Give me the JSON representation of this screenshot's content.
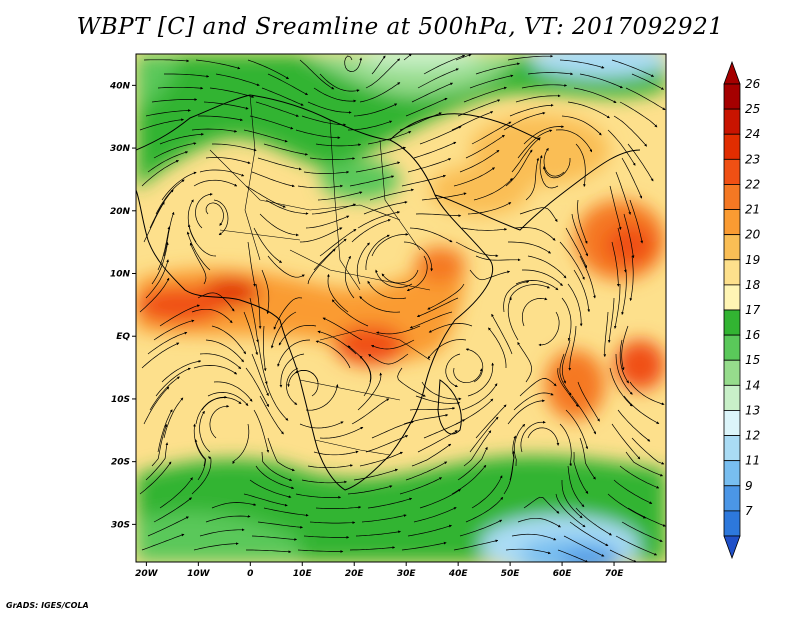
{
  "title": "WBPT [C] and Sreamline at 500hPa, VT: 2017092921",
  "credit": "GrADS: IGES/COLA",
  "map": {
    "lon_range": [
      -22,
      80
    ],
    "lat_range": [
      -36,
      45
    ],
    "lat_ticks": [
      {
        "value": 40,
        "label": "40N"
      },
      {
        "value": 30,
        "label": "30N"
      },
      {
        "value": 20,
        "label": "20N"
      },
      {
        "value": 10,
        "label": "10N"
      },
      {
        "value": 0,
        "label": "EQ"
      },
      {
        "value": -10,
        "label": "10S"
      },
      {
        "value": -20,
        "label": "20S"
      },
      {
        "value": -30,
        "label": "30S"
      }
    ],
    "lon_ticks": [
      {
        "value": -20,
        "label": "20W"
      },
      {
        "value": -10,
        "label": "10W"
      },
      {
        "value": 0,
        "label": "0"
      },
      {
        "value": 10,
        "label": "10E"
      },
      {
        "value": 20,
        "label": "20E"
      },
      {
        "value": 30,
        "label": "30E"
      },
      {
        "value": 40,
        "label": "40E"
      },
      {
        "value": 50,
        "label": "50E"
      },
      {
        "value": 60,
        "label": "60E"
      },
      {
        "value": 70,
        "label": "70E"
      }
    ]
  },
  "colorbar": {
    "levels": [
      {
        "label": "26",
        "color": "#a50000"
      },
      {
        "label": "25",
        "color": "#c81400"
      },
      {
        "label": "24",
        "color": "#e12d00"
      },
      {
        "label": "23",
        "color": "#f05014"
      },
      {
        "label": "22",
        "color": "#f57823"
      },
      {
        "label": "21",
        "color": "#fa9b32"
      },
      {
        "label": "20",
        "color": "#fabe55"
      },
      {
        "label": "19",
        "color": "#fde08c"
      },
      {
        "label": "18",
        "color": "#fff5b4"
      },
      {
        "label": "17",
        "color": "#32b432"
      },
      {
        "label": "16",
        "color": "#5ac85a"
      },
      {
        "label": "15",
        "color": "#96dc8c"
      },
      {
        "label": "14",
        "color": "#c8f0c8"
      },
      {
        "label": "13",
        "color": "#dcf5fa"
      },
      {
        "label": "12",
        "color": "#aadcf5"
      },
      {
        "label": "11",
        "color": "#78bef0"
      },
      {
        "label": "9",
        "color": "#4b96e6"
      },
      {
        "label": "7",
        "color": "#2d78dc"
      }
    ],
    "under_color": "#2050c8"
  }
}
